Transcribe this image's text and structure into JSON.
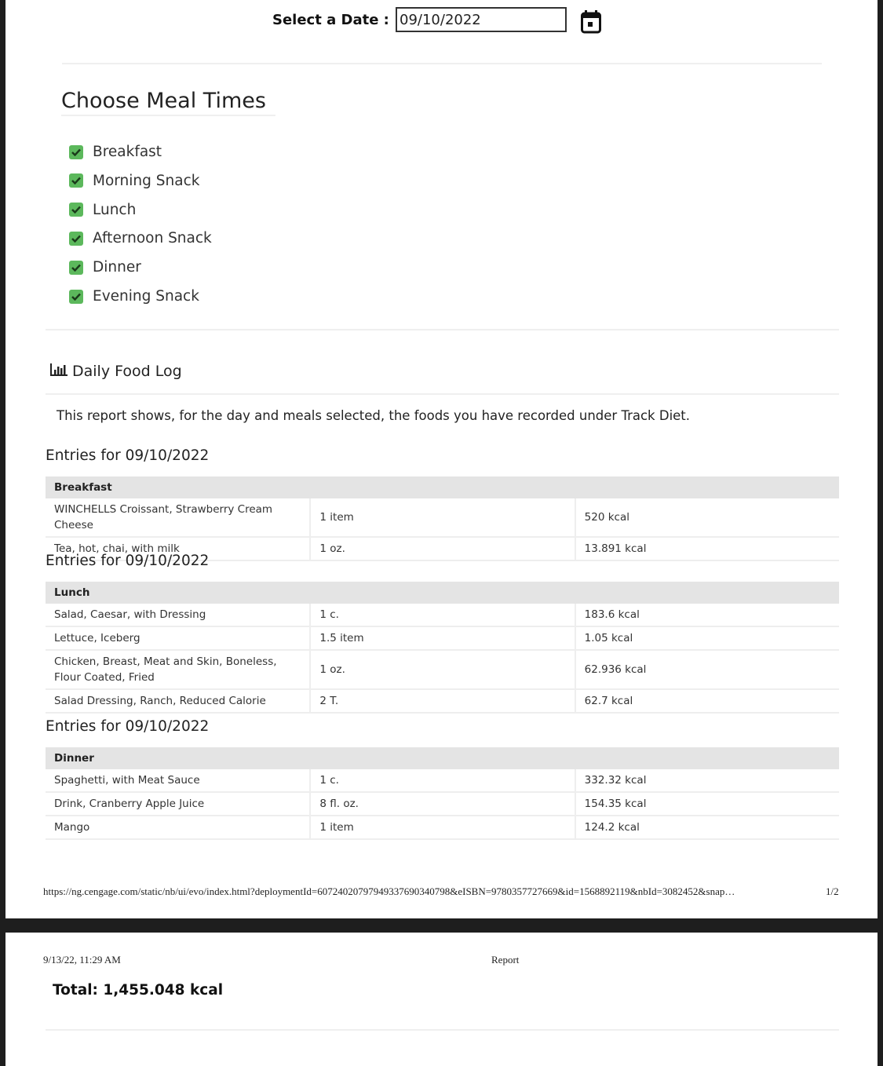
{
  "date_picker": {
    "label": "Select a Date :",
    "value": "09/10/2022",
    "icon": "calendar-icon"
  },
  "meal_times": {
    "title": "Choose Meal Times",
    "check_color": "#5cb85c",
    "items": [
      {
        "label": "Breakfast",
        "checked": true
      },
      {
        "label": "Morning Snack",
        "checked": true
      },
      {
        "label": "Lunch",
        "checked": true
      },
      {
        "label": "Afternoon Snack",
        "checked": true
      },
      {
        "label": "Dinner",
        "checked": true
      },
      {
        "label": "Evening Snack",
        "checked": true
      }
    ]
  },
  "food_log": {
    "title": "Daily Food Log",
    "icon": "bar-chart-icon",
    "description": "This report shows, for the day and meals selected, the foods you have recorded under Track Diet.",
    "sections": [
      {
        "heading": "Entries for 09/10/2022",
        "meal": "Breakfast",
        "rows": [
          [
            "WINCHELLS Croissant, Strawberry Cream Cheese",
            "1 item",
            "520 kcal"
          ],
          [
            "Tea, hot, chai, with milk",
            "1 oz.",
            "13.891 kcal"
          ]
        ]
      },
      {
        "heading": "Entries for 09/10/2022",
        "meal": "Lunch",
        "rows": [
          [
            "Salad, Caesar, with Dressing",
            "1 c.",
            "183.6 kcal"
          ],
          [
            "Lettuce, Iceberg",
            "1.5 item",
            "1.05 kcal"
          ],
          [
            "Chicken, Breast, Meat and Skin, Boneless, Flour Coated, Fried",
            "1 oz.",
            "62.936 kcal"
          ],
          [
            "Salad Dressing, Ranch, Reduced Calorie",
            "2 T.",
            "62.7 kcal"
          ]
        ]
      },
      {
        "heading": "Entries for 09/10/2022",
        "meal": "Dinner",
        "rows": [
          [
            "Spaghetti, with Meat Sauce",
            "1 c.",
            "332.32 kcal"
          ],
          [
            "Drink, Cranberry Apple Juice",
            "8 fl. oz.",
            "154.35 kcal"
          ],
          [
            "Mango",
            "1 item",
            "124.2 kcal"
          ]
        ]
      }
    ],
    "total": "Total: 1,455.048 kcal"
  },
  "print": {
    "footer_url": "https://ng.cengage.com/static/nb/ui/evo/index.html?deploymentId=60724020797949337690340798&eISBN=9780357727669&id=1568892119&nbId=3082452&snap…",
    "page": "1/2",
    "timestamp": "9/13/22, 11:29 AM",
    "doc_title": "Report"
  }
}
